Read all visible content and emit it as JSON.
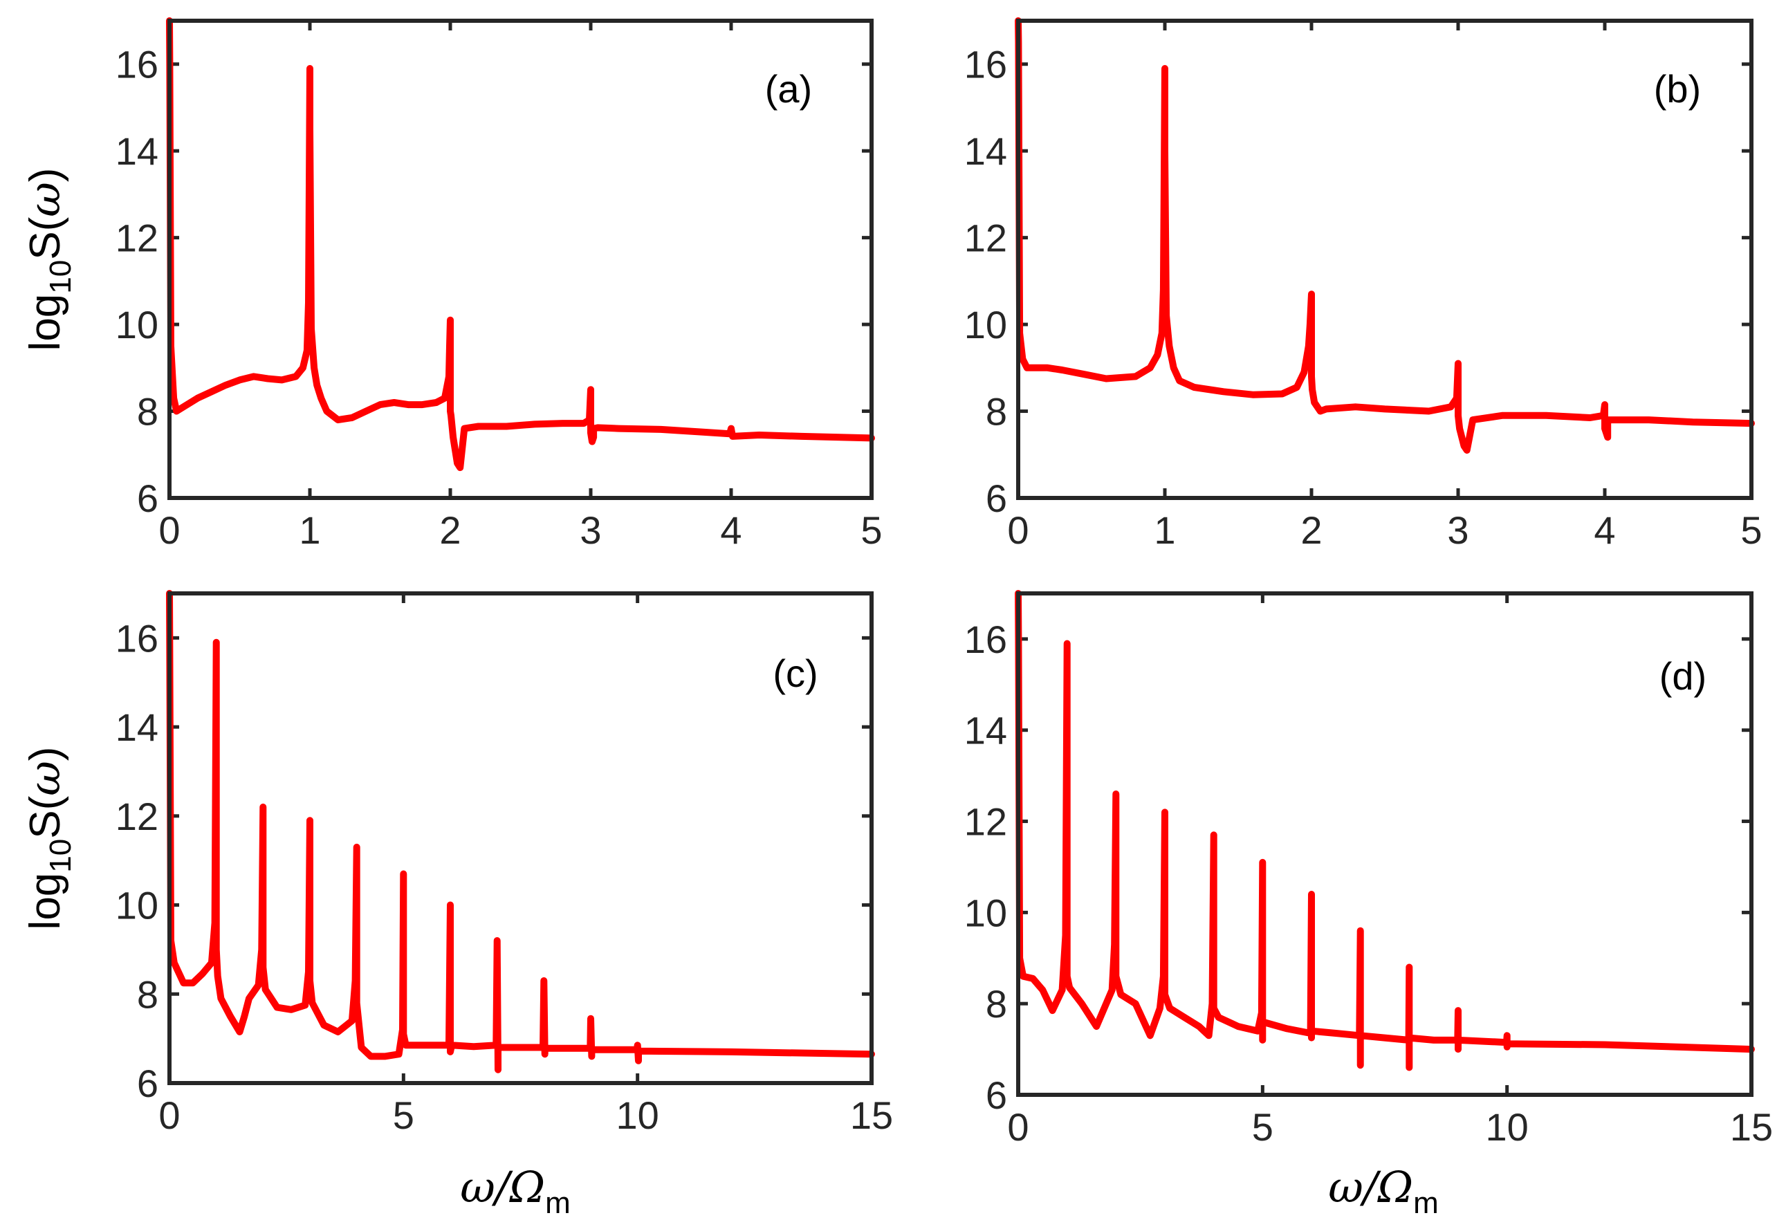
{
  "figure": {
    "series_color": "#ff0000",
    "xlabel": {
      "base": "ω/Ω",
      "sub": "m"
    },
    "ylabel": {
      "base": "log",
      "sub": "10",
      "rest": "S(",
      "sym": "ω",
      "close": ")"
    }
  },
  "chart_data": [
    {
      "type": "line",
      "panel": "(a)",
      "xlim": [
        0,
        5
      ],
      "ylim": [
        6,
        17
      ],
      "xticks": [
        "0",
        "1",
        "2",
        "3",
        "4",
        "5"
      ],
      "yticks": [
        "6",
        "8",
        "10",
        "12",
        "14",
        "16"
      ],
      "ylabel_shown": true,
      "xlabel_shown": false,
      "series": [
        {
          "name": "log10 S(ω)",
          "x": [
            0.0,
            0.002,
            0.01,
            0.03,
            0.05,
            0.1,
            0.2,
            0.3,
            0.4,
            0.5,
            0.6,
            0.7,
            0.8,
            0.9,
            0.95,
            0.98,
            0.99,
            1.0,
            1.0,
            1.01,
            1.03,
            1.05,
            1.08,
            1.12,
            1.2,
            1.3,
            1.4,
            1.5,
            1.6,
            1.7,
            1.8,
            1.9,
            1.96,
            1.99,
            1.995,
            2.0,
            2.0,
            2.005,
            2.02,
            2.05,
            2.07,
            2.1,
            2.2,
            2.4,
            2.6,
            2.8,
            2.95,
            2.99,
            3.0,
            3.0,
            3.01,
            3.02,
            3.02,
            3.05,
            3.2,
            3.5,
            3.8,
            3.99,
            4.0,
            4.01,
            4.2,
            4.5,
            5.0
          ],
          "y": [
            17,
            16.0,
            9.5,
            8.3,
            8.0,
            8.1,
            8.3,
            8.45,
            8.6,
            8.72,
            8.8,
            8.75,
            8.72,
            8.8,
            9.0,
            9.4,
            10.5,
            15.9,
            14.5,
            9.9,
            9.0,
            8.6,
            8.3,
            8.0,
            7.8,
            7.85,
            8.0,
            8.15,
            8.2,
            8.15,
            8.15,
            8.2,
            8.3,
            8.8,
            9.5,
            10.1,
            8.0,
            7.9,
            7.4,
            6.8,
            6.7,
            7.6,
            7.65,
            7.65,
            7.7,
            7.72,
            7.72,
            7.8,
            8.5,
            7.5,
            7.3,
            7.4,
            7.6,
            7.62,
            7.6,
            7.58,
            7.52,
            7.48,
            7.6,
            7.42,
            7.45,
            7.42,
            7.38
          ]
        }
      ]
    },
    {
      "type": "line",
      "panel": "(b)",
      "xlim": [
        0,
        5
      ],
      "ylim": [
        6,
        17
      ],
      "xticks": [
        "0",
        "1",
        "2",
        "3",
        "4",
        "5"
      ],
      "yticks": [
        "6",
        "8",
        "10",
        "12",
        "14",
        "16"
      ],
      "ylabel_shown": false,
      "xlabel_shown": false,
      "series": [
        {
          "name": "log10 S(ω)",
          "x": [
            0.0,
            0.002,
            0.01,
            0.03,
            0.06,
            0.1,
            0.2,
            0.3,
            0.45,
            0.6,
            0.8,
            0.9,
            0.95,
            0.98,
            0.99,
            1.0,
            1.0,
            1.01,
            1.03,
            1.06,
            1.1,
            1.2,
            1.4,
            1.6,
            1.8,
            1.9,
            1.95,
            1.98,
            1.99,
            2.0,
            2.0,
            2.005,
            2.02,
            2.06,
            2.1,
            2.3,
            2.5,
            2.8,
            2.95,
            2.99,
            3.0,
            3.0,
            3.01,
            3.04,
            3.06,
            3.1,
            3.3,
            3.6,
            3.9,
            3.99,
            4.0,
            4.0,
            4.02,
            4.02,
            4.3,
            4.6,
            5.0
          ],
          "y": [
            17,
            16.5,
            9.8,
            9.2,
            9.0,
            9.0,
            9.0,
            8.95,
            8.85,
            8.75,
            8.8,
            9.0,
            9.3,
            9.8,
            10.8,
            15.9,
            14.0,
            10.2,
            9.5,
            9.0,
            8.7,
            8.55,
            8.45,
            8.38,
            8.4,
            8.55,
            8.9,
            9.5,
            10.0,
            10.7,
            8.8,
            8.5,
            8.2,
            8.0,
            8.05,
            8.1,
            8.05,
            8.0,
            8.1,
            8.3,
            9.1,
            7.9,
            7.6,
            7.2,
            7.1,
            7.8,
            7.9,
            7.9,
            7.85,
            7.9,
            8.15,
            7.6,
            7.4,
            7.8,
            7.8,
            7.75,
            7.72
          ]
        }
      ]
    },
    {
      "type": "line",
      "panel": "(c)",
      "xlim": [
        0,
        15
      ],
      "ylim": [
        6,
        17
      ],
      "xticks": [
        "0",
        "5",
        "10",
        "15"
      ],
      "yticks": [
        "6",
        "8",
        "10",
        "12",
        "14",
        "16"
      ],
      "ylabel_shown": true,
      "xlabel_shown": true,
      "series": [
        {
          "name": "log10 S(ω)",
          "x": [
            0.0,
            0.005,
            0.03,
            0.1,
            0.3,
            0.5,
            0.7,
            0.9,
            0.97,
            1.0,
            1.0,
            1.03,
            1.1,
            1.3,
            1.5,
            1.6,
            1.7,
            1.9,
            1.97,
            2.0,
            2.0,
            2.05,
            2.3,
            2.6,
            2.9,
            2.97,
            3.0,
            3.0,
            3.05,
            3.3,
            3.6,
            3.9,
            3.97,
            4.0,
            4.0,
            4.1,
            4.3,
            4.6,
            4.9,
            4.98,
            5.0,
            5.0,
            5.05,
            5.4,
            5.97,
            6.0,
            6.0,
            6.03,
            6.5,
            6.98,
            7.0,
            7.02,
            7.02,
            7.5,
            7.98,
            8.0,
            8.02,
            8.02,
            8.99,
            9.0,
            9.02,
            9.02,
            9.99,
            10.0,
            10.02,
            10.02,
            12.0,
            15.0
          ],
          "y": [
            17,
            16.0,
            9.2,
            8.7,
            8.25,
            8.25,
            8.45,
            8.7,
            9.6,
            15.9,
            9.0,
            8.4,
            7.9,
            7.5,
            7.15,
            7.5,
            7.9,
            8.2,
            9.0,
            12.2,
            8.6,
            8.1,
            7.7,
            7.65,
            7.75,
            8.5,
            11.9,
            8.3,
            7.8,
            7.3,
            7.15,
            7.4,
            8.3,
            11.3,
            7.8,
            6.8,
            6.6,
            6.6,
            6.65,
            7.2,
            10.7,
            7.1,
            6.85,
            6.85,
            6.85,
            10.0,
            6.7,
            6.85,
            6.82,
            6.85,
            9.2,
            6.3,
            6.8,
            6.8,
            6.8,
            8.3,
            6.65,
            6.78,
            6.78,
            7.45,
            6.6,
            6.75,
            6.75,
            6.85,
            6.5,
            6.72,
            6.7,
            6.65
          ]
        }
      ]
    },
    {
      "type": "line",
      "panel": "(d)",
      "xlim": [
        0,
        15
      ],
      "ylim": [
        6,
        17
      ],
      "xticks": [
        "0",
        "5",
        "10",
        "15"
      ],
      "yticks": [
        "6",
        "8",
        "10",
        "12",
        "14",
        "16"
      ],
      "ylabel_shown": false,
      "xlabel_shown": true,
      "series": [
        {
          "name": "log10 S(ω)",
          "x": [
            0.0,
            0.005,
            0.03,
            0.1,
            0.3,
            0.5,
            0.7,
            0.9,
            0.97,
            1.0,
            1.0,
            1.05,
            1.3,
            1.6,
            1.8,
            1.92,
            1.97,
            2.0,
            2.0,
            2.1,
            2.4,
            2.7,
            2.9,
            2.97,
            3.0,
            3.0,
            3.1,
            3.4,
            3.7,
            3.9,
            3.97,
            4.0,
            4.0,
            4.1,
            4.5,
            4.9,
            4.98,
            5.0,
            5.0,
            5.0,
            5.5,
            5.98,
            6.0,
            6.0,
            6.0,
            6.5,
            6.98,
            7.0,
            7.0,
            7.0,
            7.5,
            7.99,
            8.0,
            8.0,
            8.0,
            8.5,
            8.99,
            9.0,
            9.0,
            9.0,
            9.99,
            10.0,
            10.0,
            10.0,
            12.0,
            15.0
          ],
          "y": [
            17,
            16.0,
            9.0,
            8.6,
            8.55,
            8.3,
            7.85,
            8.3,
            9.5,
            15.9,
            8.6,
            8.35,
            8.0,
            7.5,
            8.0,
            8.3,
            9.3,
            12.6,
            8.6,
            8.2,
            8.0,
            7.3,
            7.9,
            8.6,
            12.2,
            8.2,
            7.9,
            7.7,
            7.5,
            7.3,
            8.0,
            11.7,
            7.9,
            7.7,
            7.5,
            7.4,
            7.8,
            11.1,
            7.2,
            7.6,
            7.45,
            7.35,
            10.4,
            7.25,
            7.4,
            7.35,
            7.3,
            9.6,
            6.65,
            7.3,
            7.25,
            7.2,
            8.8,
            6.6,
            7.25,
            7.2,
            7.2,
            7.85,
            7.0,
            7.2,
            7.15,
            7.3,
            7.05,
            7.12,
            7.1,
            7.0
          ]
        }
      ]
    }
  ]
}
